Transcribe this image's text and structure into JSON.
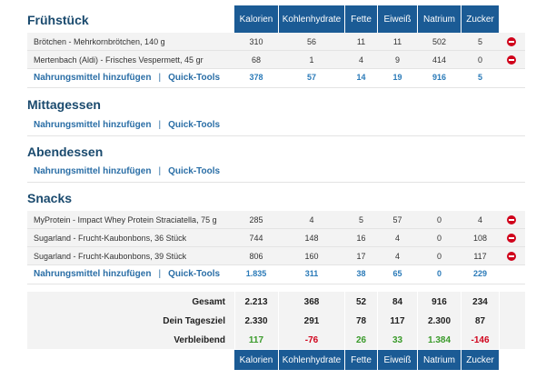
{
  "columns": [
    "Kalorien",
    "Kohlenhydrate",
    "Fette",
    "Eiweiß",
    "Natrium",
    "Zucker"
  ],
  "colors": {
    "header_bg": "#1b5b95",
    "title": "#1a4a6e",
    "link": "#2a6ea6",
    "positive": "#3a9a2a",
    "negative": "#d0021b",
    "delete": "#d0021b"
  },
  "add_food": "Nahrungsmittel hinzufügen",
  "separator": "|",
  "quick_tools": "Quick-Tools",
  "meals": {
    "breakfast": {
      "title": "Frühstück",
      "items": [
        {
          "name": "Brötchen - Mehrkornbrötchen, 140 g",
          "values": [
            "310",
            "56",
            "11",
            "11",
            "502",
            "5"
          ]
        },
        {
          "name": "Mertenbach (Aldi) - Frisches Vespermett, 45 gr",
          "values": [
            "68",
            "1",
            "4",
            "9",
            "414",
            "0"
          ]
        }
      ],
      "totals": [
        "378",
        "57",
        "14",
        "19",
        "916",
        "5"
      ]
    },
    "lunch": {
      "title": "Mittagessen"
    },
    "dinner": {
      "title": "Abendessen"
    },
    "snacks": {
      "title": "Snacks",
      "items": [
        {
          "name": "MyProtein - Impact Whey Protein Straciatella, 75 g",
          "values": [
            "285",
            "4",
            "5",
            "57",
            "0",
            "4"
          ]
        },
        {
          "name": "Sugarland - Frucht-Kaubonbons, 36 Stück",
          "values": [
            "744",
            "148",
            "16",
            "4",
            "0",
            "108"
          ]
        },
        {
          "name": "Sugarland - Frucht-Kaubonbons, 39 Stück",
          "values": [
            "806",
            "160",
            "17",
            "4",
            "0",
            "117"
          ]
        }
      ],
      "totals": [
        "1.835",
        "311",
        "38",
        "65",
        "0",
        "229"
      ]
    }
  },
  "summary": {
    "total": {
      "label": "Gesamt",
      "values": [
        "2.213",
        "368",
        "52",
        "84",
        "916",
        "234"
      ]
    },
    "goal": {
      "label": "Dein Tagesziel",
      "values": [
        "2.330",
        "291",
        "78",
        "117",
        "2.300",
        "87"
      ]
    },
    "remaining": {
      "label": "Verbleibend",
      "values": [
        "117",
        "-76",
        "26",
        "33",
        "1.384",
        "-146"
      ]
    }
  },
  "delete_icon": "minus-circle-icon"
}
